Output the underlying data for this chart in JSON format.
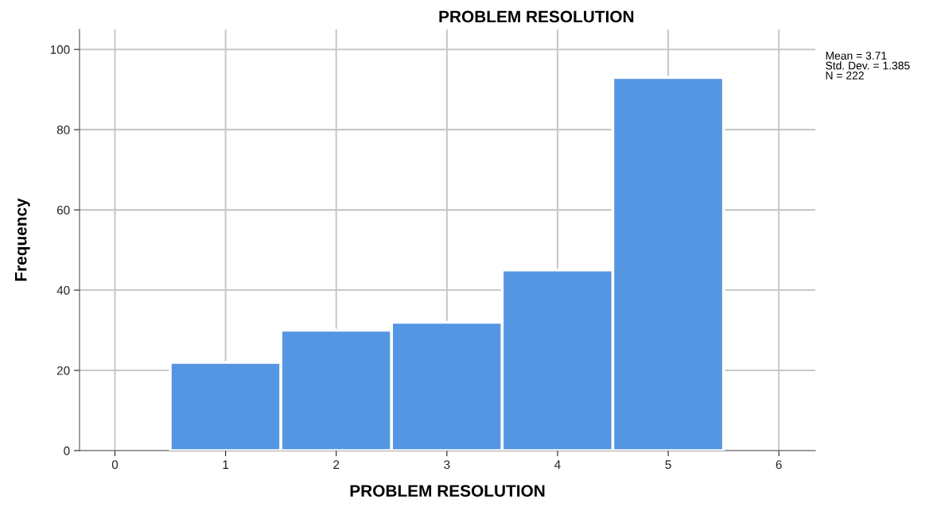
{
  "chart_data": {
    "type": "histogram",
    "title": "PROBLEM RESOLUTION",
    "xlabel": "PROBLEM RESOLUTION",
    "ylabel": "Frequency",
    "bins": [
      0.5,
      1.5,
      2.5,
      3.5,
      4.5,
      5.5
    ],
    "values": [
      22,
      30,
      32,
      45,
      93
    ],
    "color": "#5596e3",
    "xlim": [
      -0.32,
      6.33
    ],
    "xticks": [
      0,
      1,
      2,
      3,
      4,
      5,
      6
    ],
    "ylim": [
      0,
      105
    ],
    "yticks": [
      0,
      20,
      40,
      60,
      80,
      100
    ],
    "grid": true,
    "annotations": [
      "Mean = 3.71",
      "Std. Dev. = 1.385",
      "N = 222"
    ]
  }
}
